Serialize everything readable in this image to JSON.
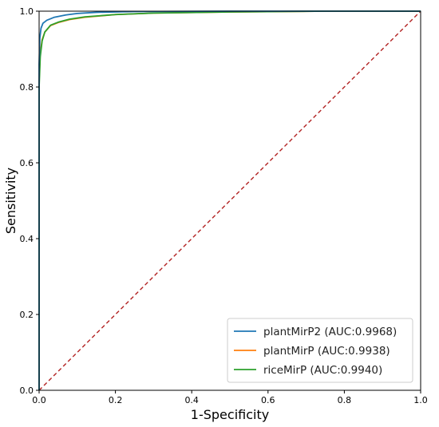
{
  "chart_data": {
    "type": "line",
    "title": "",
    "xlabel": "1-Specificity",
    "ylabel": "Sensitivity",
    "xlim": [
      0.0,
      1.0
    ],
    "ylim": [
      0.0,
      1.0
    ],
    "xticks": [
      "0.0",
      "0.2",
      "0.4",
      "0.6",
      "0.8",
      "1.0"
    ],
    "yticks": [
      "0.0",
      "0.2",
      "0.4",
      "0.6",
      "0.8",
      "1.0"
    ],
    "grid": false,
    "legend_position": "bottom-right",
    "series": [
      {
        "name": "plantMirP2 (AUC:0.9968)",
        "color": "#1f77b4",
        "points": [
          [
            0,
            0
          ],
          [
            0,
            0.86
          ],
          [
            0.002,
            0.93
          ],
          [
            0.005,
            0.955
          ],
          [
            0.01,
            0.968
          ],
          [
            0.02,
            0.976
          ],
          [
            0.04,
            0.984
          ],
          [
            0.07,
            0.99
          ],
          [
            0.1,
            0.994
          ],
          [
            0.15,
            0.997
          ],
          [
            0.25,
            0.999
          ],
          [
            0.5,
            1.0
          ],
          [
            1.0,
            1.0
          ]
        ]
      },
      {
        "name": "plantMirP (AUC:0.9938)",
        "color": "#ff7f0e",
        "points": [
          [
            0,
            0
          ],
          [
            0,
            0.82
          ],
          [
            0.003,
            0.89
          ],
          [
            0.008,
            0.925
          ],
          [
            0.015,
            0.945
          ],
          [
            0.03,
            0.962
          ],
          [
            0.05,
            0.97
          ],
          [
            0.08,
            0.978
          ],
          [
            0.12,
            0.984
          ],
          [
            0.2,
            0.991
          ],
          [
            0.3,
            0.995
          ],
          [
            0.5,
            0.998
          ],
          [
            0.75,
            1.0
          ],
          [
            1.0,
            1.0
          ]
        ]
      },
      {
        "name": "riceMirP (AUC:0.9940)",
        "color": "#2ca02c",
        "points": [
          [
            0,
            0
          ],
          [
            0,
            0.8
          ],
          [
            0.003,
            0.88
          ],
          [
            0.008,
            0.922
          ],
          [
            0.015,
            0.945
          ],
          [
            0.03,
            0.963
          ],
          [
            0.05,
            0.971
          ],
          [
            0.08,
            0.979
          ],
          [
            0.12,
            0.985
          ],
          [
            0.2,
            0.991
          ],
          [
            0.3,
            0.995
          ],
          [
            0.5,
            0.998
          ],
          [
            0.75,
            1.0
          ],
          [
            1.0,
            1.0
          ]
        ]
      },
      {
        "name": "",
        "color": "#b22222",
        "dashed": true,
        "points": [
          [
            0,
            0
          ],
          [
            1,
            1
          ]
        ]
      }
    ]
  }
}
